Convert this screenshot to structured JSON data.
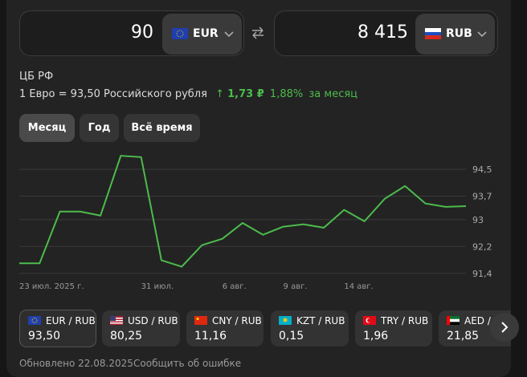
{
  "converter": {
    "from_amount": "90",
    "from_currency": "EUR",
    "to_amount": "8 415",
    "to_currency": "RUB"
  },
  "source": "ЦБ РФ",
  "rate": {
    "text": "1 Евро = 93,50 Российского рубля",
    "change_abs": "1,73 ₽",
    "change_pct": "1,88%",
    "period": "за месяц"
  },
  "tabs": [
    "Месяц",
    "Год",
    "Всё время"
  ],
  "chart_data": {
    "type": "line",
    "categories": [
      "23 июл. 2025 г.",
      null,
      null,
      null,
      null,
      null,
      "31 июл.",
      null,
      null,
      null,
      "6 авг.",
      null,
      null,
      "9 авг.",
      null,
      null,
      "14 авг.",
      null,
      null,
      null,
      null,
      null,
      null
    ],
    "series": [
      {
        "color": "#4cbb4c",
        "values": [
          91.7,
          91.7,
          93.24,
          93.24,
          93.12,
          94.9,
          94.86,
          91.79,
          91.6,
          92.24,
          92.43,
          92.9,
          92.55,
          92.79,
          92.86,
          92.76,
          93.29,
          92.95,
          93.62,
          94.0,
          93.48,
          93.38,
          93.4
        ]
      }
    ],
    "ylim": [
      91.3,
      95.0
    ],
    "yticks": [
      {
        "value": 94.5,
        "label": "94,5"
      },
      {
        "value": 93.7,
        "label": "93,7"
      },
      93,
      {
        "value": 92.2,
        "label": "92,2"
      },
      {
        "value": 91.4,
        "label": "91,4"
      }
    ],
    "grid": true
  },
  "pairs": [
    {
      "name": "EUR / RUB",
      "rate": "93,50"
    },
    {
      "name": "USD / RUB",
      "rate": "80,25"
    },
    {
      "name": "CNY / RUB",
      "rate": "11,16"
    },
    {
      "name": "KZT / RUB",
      "rate": "0,15"
    },
    {
      "name": "TRY / RUB",
      "rate": "1,96"
    },
    {
      "name": "AED / RUB",
      "rate": "21,85"
    }
  ],
  "footer": {
    "updated": "Обновлено 22.08.2025",
    "report": "Сообщить об ошибке"
  }
}
